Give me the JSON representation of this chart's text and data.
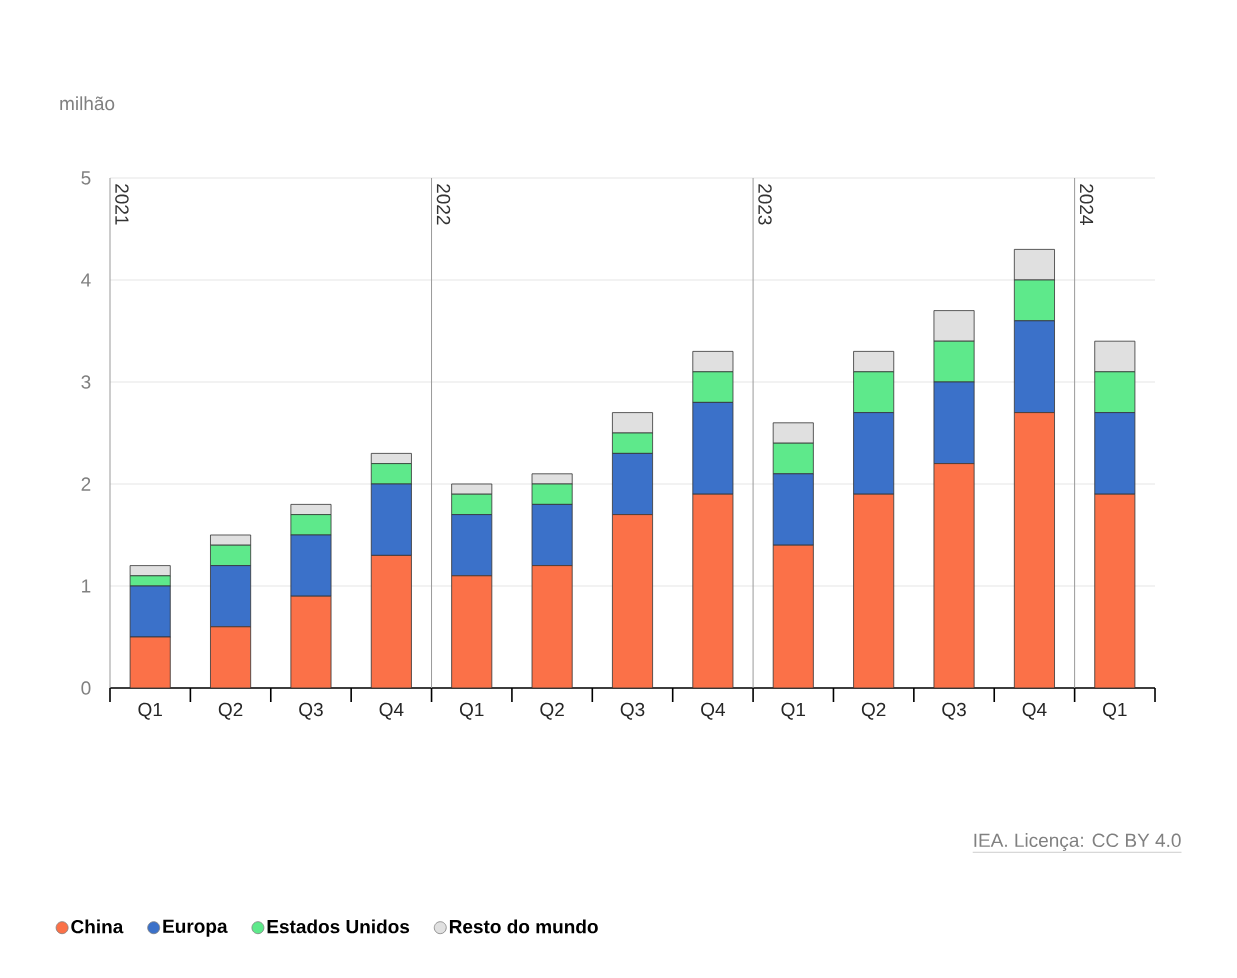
{
  "chart_data": {
    "type": "bar",
    "stacked": true,
    "ylabel": "milhão",
    "categories": [
      "Q1",
      "Q2",
      "Q3",
      "Q4",
      "Q1",
      "Q2",
      "Q3",
      "Q4",
      "Q1",
      "Q2",
      "Q3",
      "Q4",
      "Q1"
    ],
    "series": [
      {
        "name": "China",
        "color": "#fb7148",
        "values": [
          0.5,
          0.6,
          0.9,
          1.3,
          1.1,
          1.2,
          1.7,
          1.9,
          1.4,
          1.9,
          2.2,
          2.7,
          1.9
        ]
      },
      {
        "name": "Europa",
        "color": "#3b71c9",
        "values": [
          0.5,
          0.6,
          0.6,
          0.7,
          0.6,
          0.6,
          0.6,
          0.9,
          0.7,
          0.8,
          0.8,
          0.9,
          0.8
        ]
      },
      {
        "name": "Estados Unidos",
        "color": "#5ee98b",
        "values": [
          0.1,
          0.2,
          0.2,
          0.2,
          0.2,
          0.2,
          0.2,
          0.3,
          0.3,
          0.4,
          0.4,
          0.4,
          0.4
        ]
      },
      {
        "name": "Resto do mundo",
        "color": "#e0e0e0",
        "values": [
          0.1,
          0.1,
          0.1,
          0.1,
          0.1,
          0.1,
          0.2,
          0.2,
          0.2,
          0.2,
          0.3,
          0.3,
          0.3
        ]
      }
    ],
    "ylim": [
      0,
      5
    ],
    "yticks": [
      0,
      1,
      2,
      3,
      4,
      5
    ],
    "grid": "y",
    "legend": "bottom",
    "annotations": [
      "IEA. Licença: CC BY 4.0",
      "2021",
      "2022",
      "2023",
      "2024"
    ]
  }
}
